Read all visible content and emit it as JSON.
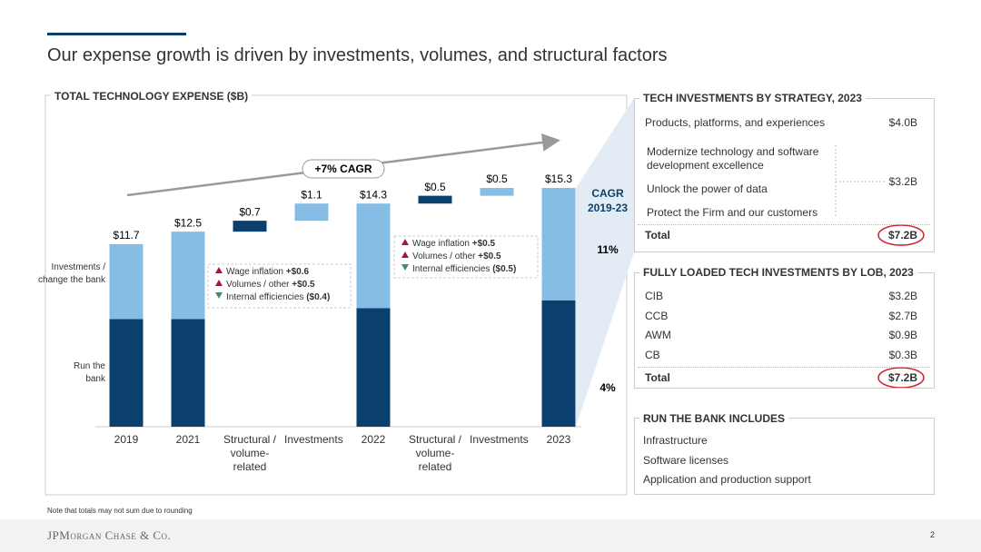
{
  "title": "Our expense growth is driven by investments, volumes, and structural factors",
  "chart_data": {
    "type": "waterfall",
    "title": "TOTAL TECHNOLOGY EXPENSE ($B)",
    "categories": [
      "2019",
      "2021",
      "Structural / volume-related",
      "Investments",
      "2022",
      "Structural / volume-related",
      "Investments",
      "2023"
    ],
    "measure": [
      "total",
      "total",
      "relative",
      "relative",
      "total",
      "relative",
      "relative",
      "total"
    ],
    "series": [
      {
        "name": "Run the bank",
        "color": "#0b3f6e",
        "values": [
          6.9,
          6.9,
          0.7,
          null,
          7.6,
          0.5,
          null,
          8.1
        ]
      },
      {
        "name": "Investments / change the bank",
        "color": "#86bde4",
        "values": [
          4.8,
          5.6,
          null,
          1.1,
          6.7,
          null,
          0.5,
          7.2
        ]
      }
    ],
    "labels": {
      "values": [
        11.7,
        12.5,
        0.7,
        1.1,
        14.3,
        0.5,
        0.5,
        15.3
      ],
      "value_labels": [
        "$11.7",
        "$12.5",
        "$0.7",
        "$1.1",
        "$14.3",
        "$0.5",
        "$0.5",
        "$15.3"
      ]
    },
    "ylim": [
      0,
      16
    ],
    "annotation": "+7% CAGR",
    "cagr": {
      "heading": [
        "CAGR",
        "2019-23"
      ],
      "labels": [
        "4%",
        "11%"
      ]
    },
    "callouts": [
      [
        {
          "text": "Wage inflation",
          "amount": "+$0.6",
          "direction": "up"
        },
        {
          "text": "Volumes / other",
          "amount": "+$0.5",
          "direction": "up"
        },
        {
          "text": "Internal efficiencies",
          "amount": "($0.4)",
          "direction": "down"
        }
      ],
      [
        {
          "text": "Wage inflation",
          "amount": "+$0.5",
          "direction": "up"
        },
        {
          "text": "Volumes / other",
          "amount": "+$0.5",
          "direction": "up"
        },
        {
          "text": "Internal efficiencies",
          "amount": "($0.5)",
          "direction": "down"
        }
      ]
    ]
  },
  "strategy": {
    "title": "TECH INVESTMENTS BY STRATEGY, 2023",
    "rows": [
      [
        "Products, platforms, and experiences",
        "$4.0B"
      ]
    ],
    "group": {
      "items": [
        "Modernize technology and software development excellence",
        "Unlock the power of data",
        "Protect the Firm and our customers"
      ],
      "amount": "$3.2B"
    },
    "total": [
      "Total",
      "$7.2B"
    ]
  },
  "lob": {
    "title": "FULLY LOADED TECH INVESTMENTS BY LOB, 2023",
    "rows": [
      [
        "CIB",
        "$3.2B"
      ],
      [
        "CCB",
        "$2.7B"
      ],
      [
        "AWM",
        "$0.9B"
      ],
      [
        "CB",
        "$0.3B"
      ]
    ],
    "total": [
      "Total",
      "$7.2B"
    ]
  },
  "run_the_bank": {
    "title": "RUN THE BANK INCLUDES",
    "items": [
      "Infrastructure",
      "Software licenses",
      "Application and production support"
    ]
  },
  "footnote": "Note that totals may not sum due to rounding",
  "footer": {
    "logo": "JPMorgan Chase & Co.",
    "page": "2"
  }
}
